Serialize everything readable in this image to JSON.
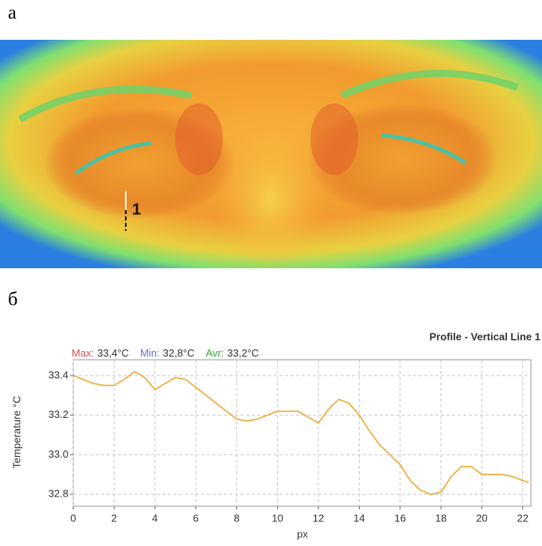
{
  "labels": [
    "а",
    "б"
  ],
  "image": {
    "marker_label": "1"
  },
  "chart_data": {
    "type": "line",
    "title": "Profile - Vertical Line 1",
    "stats": [
      {
        "label": "Max:",
        "value": "33,4°C",
        "color": "#d9534f"
      },
      {
        "label": "Min:",
        "value": "32,8°C",
        "color": "#5b6fd6"
      },
      {
        "label": "Avr:",
        "value": "33,2°C",
        "color": "#3aa83a"
      }
    ],
    "y_label": "Temperature °C",
    "x_label": "px",
    "x": [
      0,
      0.5,
      1,
      1.5,
      2,
      2.5,
      3,
      3.5,
      4,
      4.5,
      5,
      5.5,
      6,
      6.5,
      7,
      7.5,
      8,
      8.5,
      9,
      9.5,
      10,
      10.5,
      11,
      11.5,
      12,
      12.5,
      13,
      13.5,
      14,
      14.5,
      15,
      15.5,
      16,
      16.5,
      17,
      17.5,
      18,
      18.5,
      19,
      19.5,
      20,
      20.5,
      21,
      21.5,
      22,
      22.3
    ],
    "series": [
      {
        "color": "#f0a830",
        "values": [
          33.4,
          33.38,
          33.36,
          33.35,
          33.35,
          33.38,
          33.42,
          33.39,
          33.33,
          33.36,
          33.39,
          33.38,
          33.34,
          33.3,
          33.26,
          33.22,
          33.18,
          33.17,
          33.18,
          33.2,
          33.22,
          33.22,
          33.22,
          33.19,
          33.16,
          33.23,
          33.28,
          33.26,
          33.2,
          33.12,
          33.05,
          33.0,
          32.95,
          32.87,
          32.82,
          32.8,
          32.81,
          32.89,
          32.94,
          32.94,
          32.9,
          32.9,
          32.9,
          32.89,
          32.87,
          32.86
        ]
      }
    ],
    "xlim": [
      0,
      22.4
    ],
    "ylim": [
      32.74,
      33.48
    ],
    "xticks": [
      0,
      2,
      4,
      6,
      8,
      10,
      12,
      14,
      16,
      18,
      20,
      22
    ],
    "yticks": [
      {
        "value": 32.8,
        "label": "32.8"
      },
      {
        "value": 33,
        "label": "33.0"
      },
      {
        "value": 33.2,
        "label": "33.2"
      },
      {
        "value": 33.4,
        "label": "33.4"
      }
    ],
    "grid": true
  }
}
